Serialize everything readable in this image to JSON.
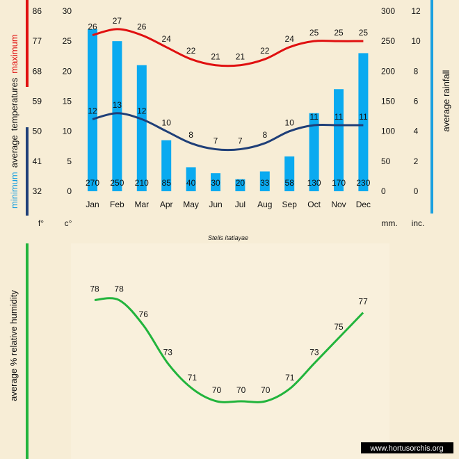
{
  "chart_data": [
    {
      "type": "bar",
      "title": "Stelis itatiayae",
      "categories": [
        "Jan",
        "Feb",
        "Mar",
        "Apr",
        "May",
        "Jun",
        "Jul",
        "Aug",
        "Sep",
        "Oct",
        "Nov",
        "Dec"
      ],
      "series": [
        {
          "name": "average rainfall",
          "unit": "mm.",
          "values": [
            270,
            250,
            210,
            85,
            40,
            30,
            20,
            33,
            58,
            130,
            170,
            230
          ]
        },
        {
          "name": "maximum",
          "type": "line",
          "unit": "c°",
          "values": [
            26,
            27,
            26,
            24,
            22,
            21,
            21,
            22,
            24,
            25,
            25,
            25
          ]
        },
        {
          "name": "minimum",
          "type": "line",
          "unit": "c°",
          "values": [
            12,
            13,
            12,
            10,
            8,
            7,
            7,
            8,
            10,
            11,
            11,
            11
          ]
        }
      ],
      "ylabel_left": [
        "minimum",
        "average",
        "temperatures",
        "maximum"
      ],
      "ylabel_right": "average rainfall",
      "unit_labels": {
        "fahrenheit": "f°",
        "celsius": "c°",
        "mm": "mm.",
        "inches": "inc."
      },
      "axes": {
        "fahrenheit_ticks": [
          "86",
          "77",
          "68",
          "59",
          "50",
          "41",
          "32"
        ],
        "celsius_ticks": [
          "30",
          "25",
          "20",
          "15",
          "10",
          "5",
          "0"
        ],
        "mm_ticks": [
          "300",
          "250",
          "200",
          "150",
          "100",
          "50",
          "0"
        ],
        "inch_ticks": [
          "12",
          "10",
          "8",
          "6",
          "4",
          "2",
          "0"
        ]
      },
      "ylim_celsius": [
        0,
        30
      ],
      "ylim_rain": [
        0,
        300
      ],
      "colors": {
        "bars": "#0aaaf0",
        "maximum": "#e01010",
        "minimum": "#1f3f78",
        "rain_axis": "#1aa0e0",
        "label_min": "#1aa0e0"
      }
    },
    {
      "type": "line",
      "categories": [
        "Jan",
        "Feb",
        "Mar",
        "Apr",
        "May",
        "Jun",
        "Jul",
        "Aug",
        "Sep",
        "Oct",
        "Nov",
        "Dec"
      ],
      "series": [
        {
          "name": "average % relative humidity",
          "values": [
            78,
            78,
            76,
            73,
            71,
            70,
            70,
            70,
            71,
            73,
            75,
            77
          ]
        }
      ],
      "ylabel": "average %  relative humidity",
      "ylim": [
        69,
        79
      ],
      "colors": {
        "line": "#22b43c"
      }
    }
  ],
  "watermark": "www.hortusorchis.org"
}
